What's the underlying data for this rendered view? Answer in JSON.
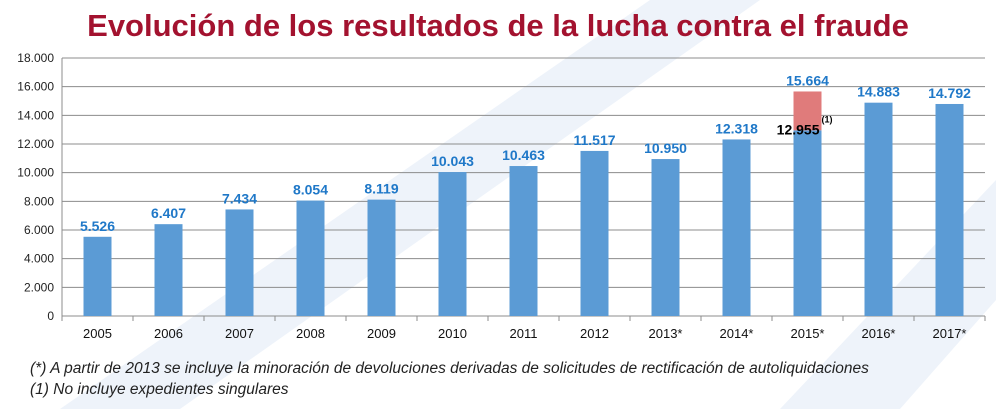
{
  "title": "Evolución de los resultados de la lucha contra el fraude",
  "notes": [
    "(*) A partir de 2013 se incluye la minoración de devoluciones derivadas de solicitudes de rectificación de autoliquidaciones",
    "(1) No incluye expedientes singulares"
  ],
  "colors": {
    "bar": "#5b9bd5",
    "extra": "#e07b7b",
    "label": "#1f78c8",
    "title": "#a3122f"
  },
  "chart_data": {
    "type": "bar",
    "title": "Evolución de los resultados de la lucha contra el fraude",
    "categories": [
      "2005",
      "2006",
      "2007",
      "2008",
      "2009",
      "2010",
      "2011",
      "2012",
      "2013*",
      "2014*",
      "2015*",
      "2016*",
      "2017*"
    ],
    "values": [
      5526,
      6407,
      7434,
      8054,
      8119,
      10043,
      10463,
      11517,
      10950,
      12318,
      15664,
      14883,
      14792
    ],
    "value_labels": [
      "5.526",
      "6.407",
      "7.434",
      "8.054",
      "8.119",
      "10.043",
      "10.463",
      "11.517",
      "10.950",
      "12.318",
      "15.664",
      "14.883",
      "14.792"
    ],
    "annotation": {
      "category": "2015*",
      "value": 12955,
      "label": "12.955",
      "superscript": "(1)"
    },
    "ylim": [
      0,
      18000
    ],
    "yticks": [
      "0",
      "2.000",
      "4.000",
      "6.000",
      "8.000",
      "10.000",
      "12.000",
      "14.000",
      "16.000",
      "18.000"
    ],
    "grid": true,
    "legend": "none"
  }
}
